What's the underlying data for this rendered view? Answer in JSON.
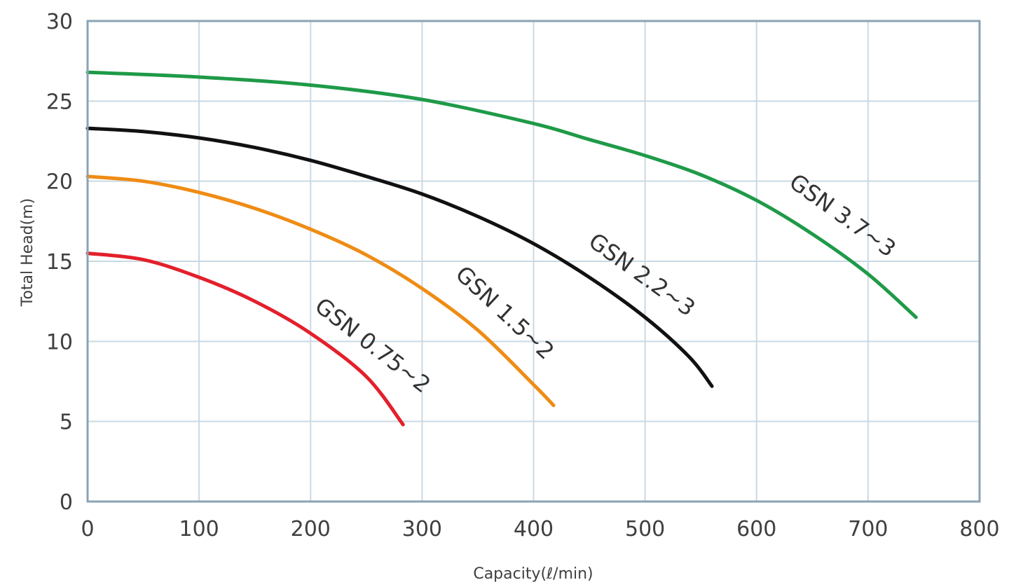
{
  "chart_data": {
    "type": "line",
    "xlabel": "Capacity(ℓ/min)",
    "ylabel": "Total Head(m)",
    "xlim": [
      0,
      800
    ],
    "ylim": [
      0,
      30
    ],
    "x_ticks": [
      "0",
      "100",
      "200",
      "300",
      "400",
      "500",
      "600",
      "700",
      "800"
    ],
    "y_ticks": [
      "0",
      "5",
      "10",
      "15",
      "20",
      "25",
      "30"
    ],
    "grid": true,
    "grid_color": "#c9d9e3",
    "frame_color": "#8aa3b3",
    "series": [
      {
        "name": "GSN 0.75-2",
        "label": "GSN 0.75~2",
        "color": "#e3202b",
        "points": [
          [
            0,
            15.5
          ],
          [
            50,
            15.1
          ],
          [
            100,
            14.0
          ],
          [
            150,
            12.5
          ],
          [
            200,
            10.5
          ],
          [
            250,
            7.8
          ],
          [
            283,
            4.8
          ]
        ]
      },
      {
        "name": "GSN 1.5-2",
        "label": "GSN 1.5~2",
        "color": "#ef8c14",
        "points": [
          [
            0,
            20.3
          ],
          [
            50,
            20.0
          ],
          [
            100,
            19.3
          ],
          [
            150,
            18.3
          ],
          [
            200,
            17.0
          ],
          [
            250,
            15.4
          ],
          [
            300,
            13.3
          ],
          [
            350,
            10.7
          ],
          [
            400,
            7.3
          ],
          [
            418,
            6.0
          ]
        ]
      },
      {
        "name": "GSN 2.2-3",
        "label": "GSN 2.2~3",
        "color": "#111111",
        "points": [
          [
            0,
            23.3
          ],
          [
            50,
            23.1
          ],
          [
            100,
            22.7
          ],
          [
            150,
            22.1
          ],
          [
            200,
            21.3
          ],
          [
            250,
            20.3
          ],
          [
            300,
            19.2
          ],
          [
            350,
            17.8
          ],
          [
            400,
            16.1
          ],
          [
            450,
            14.0
          ],
          [
            500,
            11.5
          ],
          [
            540,
            9.0
          ],
          [
            560,
            7.2
          ]
        ]
      },
      {
        "name": "GSN 3.7-3",
        "label": "GSN 3.7~3",
        "color": "#1f9a48",
        "points": [
          [
            0,
            26.8
          ],
          [
            100,
            26.5
          ],
          [
            200,
            26.0
          ],
          [
            300,
            25.1
          ],
          [
            400,
            23.6
          ],
          [
            450,
            22.6
          ],
          [
            500,
            21.6
          ],
          [
            550,
            20.4
          ],
          [
            600,
            18.8
          ],
          [
            650,
            16.7
          ],
          [
            700,
            14.2
          ],
          [
            743,
            11.5
          ]
        ]
      }
    ]
  }
}
